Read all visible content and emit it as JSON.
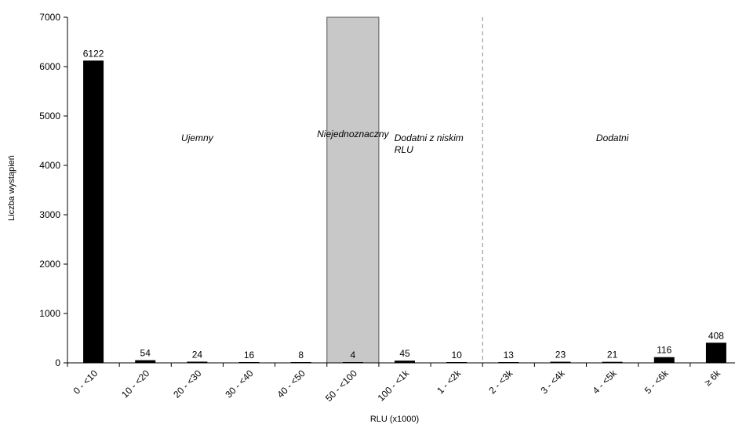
{
  "chart_data": {
    "type": "bar",
    "title": "",
    "xlabel": "RLU (x1000)",
    "ylabel": "Liczba wystąpień",
    "ylim": [
      0,
      7000
    ],
    "yticks": [
      0,
      1000,
      2000,
      3000,
      4000,
      5000,
      6000,
      7000
    ],
    "categories": [
      "0 - <10",
      "10 - <20",
      "20 - <30",
      "30 - <40",
      "40 - <50",
      "50 - <100",
      "100 - <1k",
      "1 - <2k",
      "2 - <3k",
      "3 - <4k",
      "4 - <5k",
      "5 - <6k",
      "≥ 6k"
    ],
    "values": [
      6122,
      54,
      24,
      16,
      8,
      4,
      45,
      10,
      13,
      23,
      21,
      116,
      408
    ],
    "data_labels": [
      "6122",
      "54",
      "24",
      "16",
      "8",
      "4",
      "45",
      "10",
      "13",
      "23",
      "21",
      "116",
      "408"
    ],
    "regions": [
      {
        "label": "Ujemny",
        "start": 0,
        "end": 4,
        "shaded": false
      },
      {
        "label": "Niejednoznaczny",
        "start": 5,
        "end": 5,
        "shaded": true,
        "shade_color": "#c8c8c8"
      },
      {
        "label": "Dodatni z niskim RLU",
        "start": 6,
        "end": 7,
        "shaded": false
      },
      {
        "label": "Dodatni",
        "start": 8,
        "end": 12,
        "shaded": false
      }
    ],
    "bar_color": "#000000",
    "grid": false,
    "legend": "none"
  }
}
